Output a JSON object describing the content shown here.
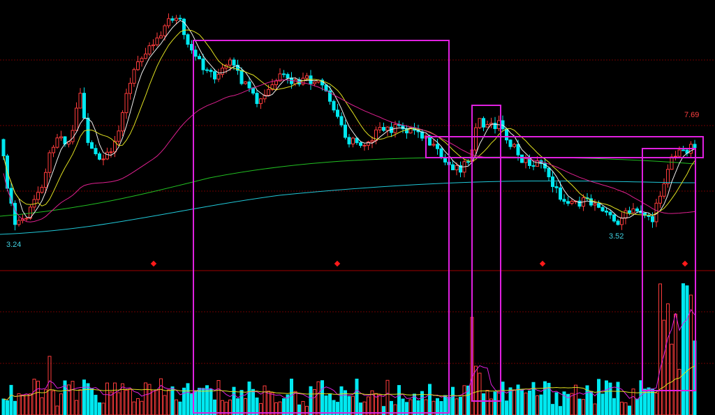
{
  "labels": {
    "low_left": "3.24",
    "low_right": "3.52",
    "high_right": "7.69"
  }
}
